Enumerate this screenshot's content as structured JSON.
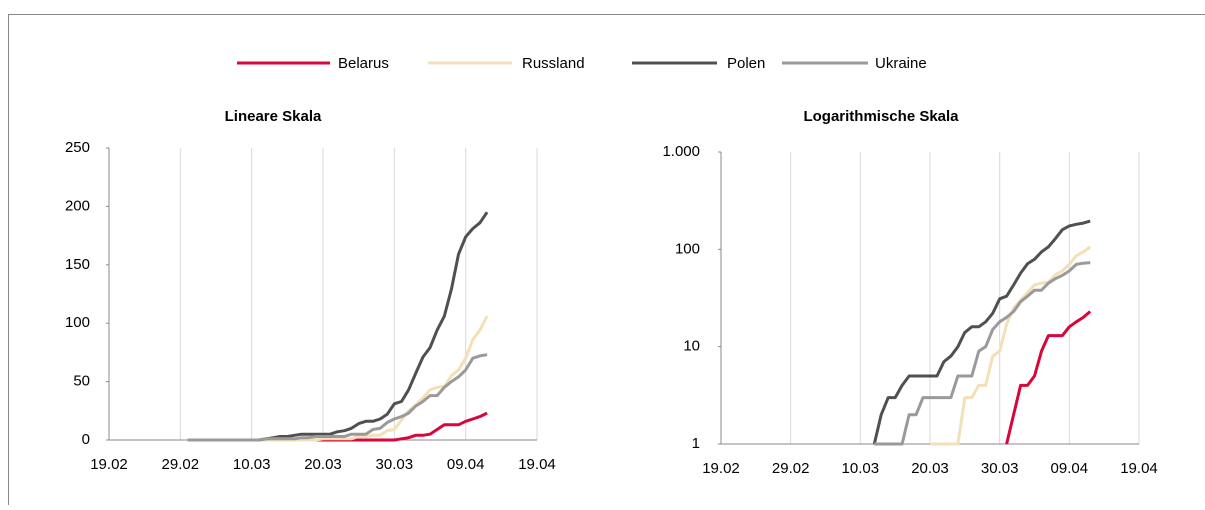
{
  "chart_data": [
    {
      "type": "line",
      "title": "Lineare Skala",
      "x": [
        "01.03",
        "05.03",
        "10.03",
        "11.03",
        "12.03",
        "13.03",
        "14.03",
        "15.03",
        "16.03",
        "17.03",
        "18.03",
        "19.03",
        "20.03",
        "21.03",
        "22.03",
        "23.03",
        "24.03",
        "25.03",
        "26.03",
        "27.03",
        "28.03",
        "29.03",
        "30.03",
        "31.03",
        "01.04",
        "02.04",
        "03.04",
        "04.04",
        "05.04",
        "06.04",
        "07.04",
        "08.04",
        "09.04",
        "10.04",
        "11.04",
        "12.04"
      ],
      "xlim": [
        "19.02",
        "19.04"
      ],
      "xticks": [
        "19.02",
        "29.02",
        "10.03",
        "20.03",
        "30.03",
        "09.04",
        "19.04"
      ],
      "ylim": [
        0,
        250
      ],
      "yticks": [
        0,
        50,
        100,
        150,
        200,
        250
      ],
      "grid": true,
      "series": [
        {
          "name": "Belarus",
          "color": "#d7063b",
          "values": [
            0,
            0,
            0,
            0,
            0,
            0,
            0,
            0,
            0,
            0,
            0,
            0,
            0,
            0,
            0,
            0,
            0,
            0,
            0,
            0,
            0,
            0,
            0,
            1,
            2,
            4,
            4,
            5,
            9,
            13,
            13,
            13,
            16,
            18,
            20,
            23
          ]
        },
        {
          "name": "Russland",
          "color": "#f3dfb8",
          "values": [
            0,
            0,
            0,
            0,
            0,
            0,
            0,
            0,
            0,
            0,
            0,
            0,
            1,
            1,
            1,
            1,
            1,
            3,
            3,
            4,
            4,
            8,
            9,
            17,
            25,
            30,
            36,
            43,
            45,
            46,
            55,
            60,
            70,
            86,
            94,
            106
          ]
        },
        {
          "name": "Polen",
          "color": "#505050",
          "values": [
            0,
            0,
            0,
            0,
            1,
            2,
            3,
            3,
            4,
            5,
            5,
            5,
            5,
            5,
            7,
            8,
            10,
            14,
            16,
            16,
            18,
            22,
            31,
            33,
            43,
            57,
            71,
            79,
            94,
            106,
            129,
            159,
            174,
            181,
            186,
            195
          ]
        },
        {
          "name": "Ukraine",
          "color": "#9a9a9a",
          "values": [
            0,
            0,
            0,
            0,
            1,
            1,
            1,
            1,
            1,
            2,
            2,
            3,
            3,
            3,
            3,
            3,
            5,
            5,
            5,
            9,
            10,
            15,
            18,
            20,
            23,
            29,
            33,
            38,
            38,
            45,
            50,
            54,
            60,
            70,
            72,
            73
          ]
        }
      ]
    },
    {
      "type": "line",
      "title": "Logarithmische Skala",
      "log_scale": true,
      "x": [
        "01.03",
        "05.03",
        "10.03",
        "11.03",
        "12.03",
        "13.03",
        "14.03",
        "15.03",
        "16.03",
        "17.03",
        "18.03",
        "19.03",
        "20.03",
        "21.03",
        "22.03",
        "23.03",
        "24.03",
        "25.03",
        "26.03",
        "27.03",
        "28.03",
        "29.03",
        "30.03",
        "31.03",
        "01.04",
        "02.04",
        "03.04",
        "04.04",
        "05.04",
        "06.04",
        "07.04",
        "08.04",
        "09.04",
        "10.04",
        "11.04",
        "12.04"
      ],
      "xlim": [
        "19.02",
        "19.04"
      ],
      "xticks": [
        "19.02",
        "29.02",
        "10.03",
        "20.03",
        "30.03",
        "09.04",
        "19.04"
      ],
      "ylim": [
        1,
        1000
      ],
      "yticks": [
        1,
        10,
        100,
        {
          "value": 1000,
          "label": "1.000"
        }
      ],
      "grid": true,
      "series": [
        {
          "color": "#d7063b",
          "values": [
            0,
            0,
            0,
            0,
            0,
            0,
            0,
            0,
            0,
            0,
            0,
            0,
            0,
            0,
            0,
            0,
            0,
            0,
            0,
            0,
            0,
            0,
            0,
            1,
            2,
            4,
            4,
            5,
            9,
            13,
            13,
            13,
            16,
            18,
            20,
            23
          ]
        },
        {
          "color": "#f3dfb8",
          "values": [
            0,
            0,
            0,
            0,
            0,
            0,
            0,
            0,
            0,
            0,
            0,
            0,
            1,
            1,
            1,
            1,
            1,
            3,
            3,
            4,
            4,
            8,
            9,
            17,
            25,
            30,
            36,
            43,
            45,
            46,
            55,
            60,
            70,
            86,
            94,
            106
          ]
        },
        {
          "color": "#505050",
          "values": [
            0,
            0,
            0,
            0,
            1,
            2,
            3,
            3,
            4,
            5,
            5,
            5,
            5,
            5,
            7,
            8,
            10,
            14,
            16,
            16,
            18,
            22,
            31,
            33,
            43,
            57,
            71,
            79,
            94,
            106,
            129,
            159,
            174,
            181,
            186,
            195
          ]
        },
        {
          "color": "#9a9a9a",
          "values": [
            0,
            0,
            0,
            0,
            1,
            1,
            1,
            1,
            1,
            2,
            2,
            3,
            3,
            3,
            3,
            3,
            5,
            5,
            5,
            9,
            10,
            15,
            18,
            20,
            23,
            29,
            33,
            38,
            38,
            45,
            50,
            54,
            60,
            70,
            72,
            73
          ]
        }
      ]
    }
  ]
}
